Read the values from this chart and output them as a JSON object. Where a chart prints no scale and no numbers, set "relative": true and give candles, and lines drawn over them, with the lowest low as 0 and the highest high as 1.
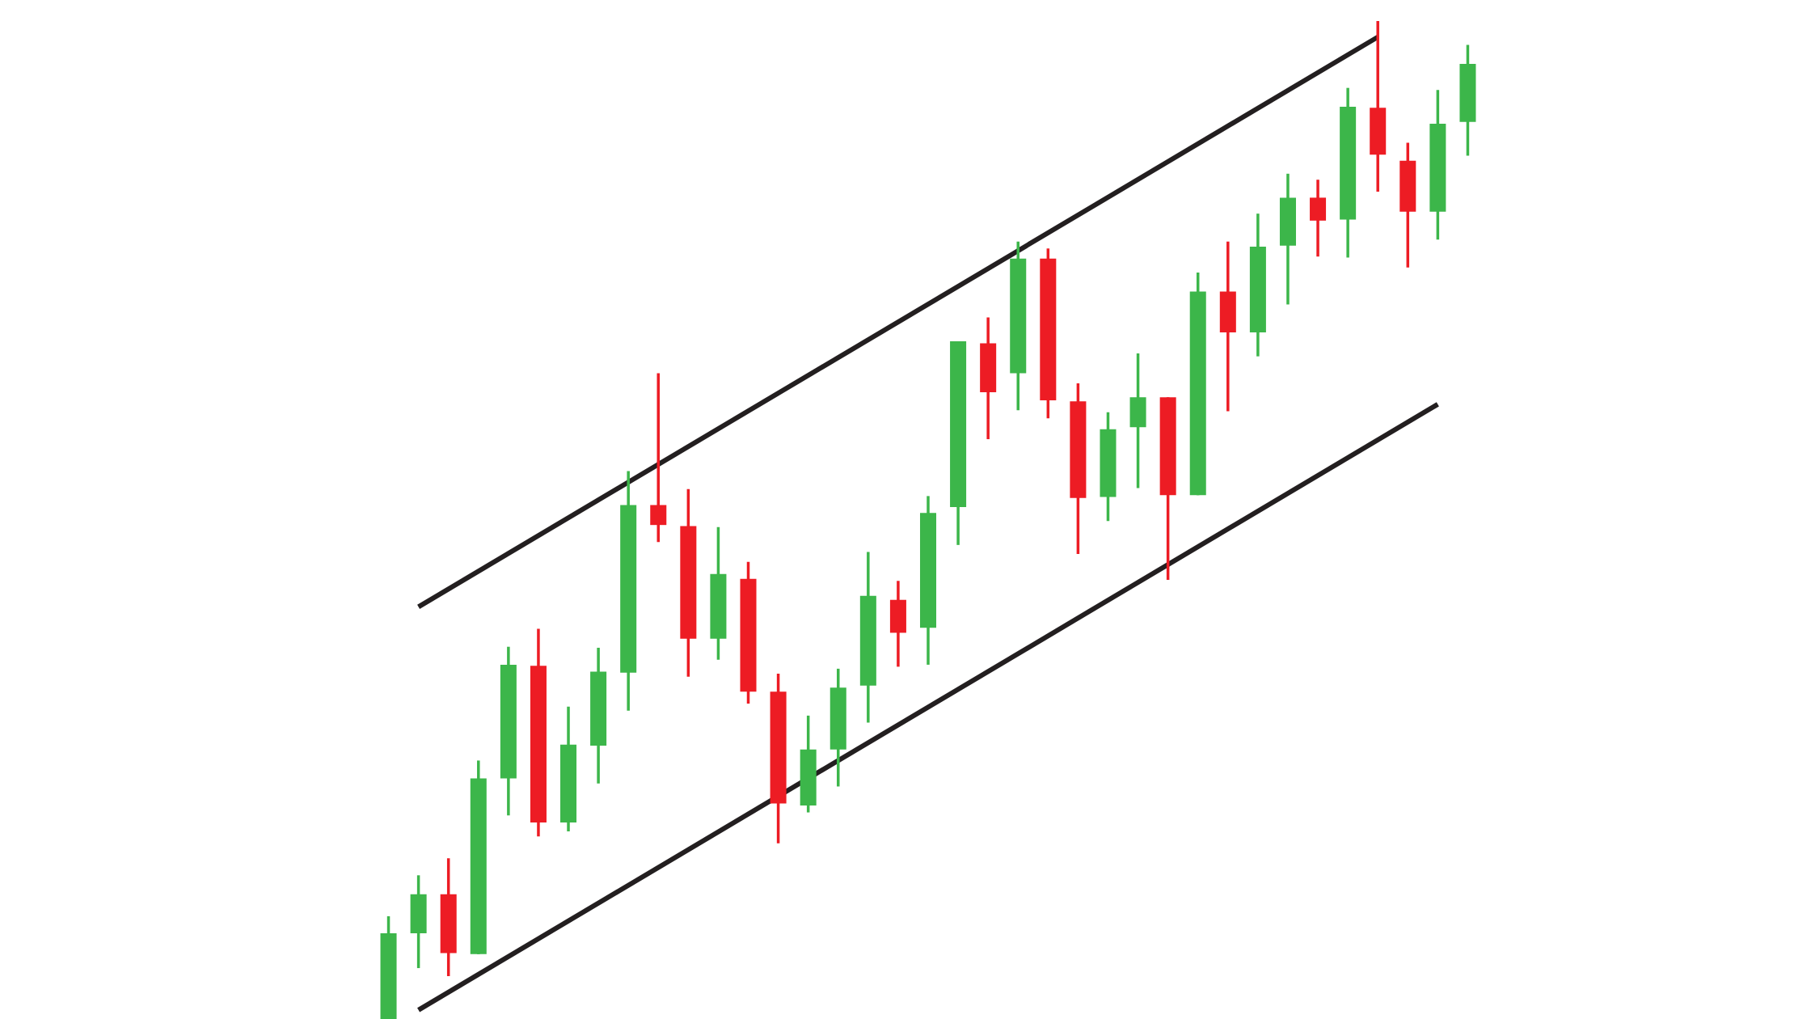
{
  "chart_data": {
    "type": "candlestick",
    "relative": true,
    "categories": [
      null,
      null,
      null,
      null,
      null,
      null,
      null,
      null,
      null,
      null,
      null,
      null,
      null,
      null,
      null,
      null,
      null,
      null,
      null,
      null,
      null,
      null,
      null,
      null,
      null,
      null,
      null,
      null,
      null,
      null,
      null,
      null,
      null,
      null,
      null,
      null,
      null
    ],
    "ohlc": [
      [
        0,
        0.103,
        0,
        0.086
      ],
      [
        0.086,
        0.144,
        0.051,
        0.125
      ],
      [
        0.125,
        0.161,
        0.043,
        0.066
      ],
      [
        0.065,
        0.259,
        0.065,
        0.241
      ],
      [
        0.241,
        0.373,
        0.204,
        0.355
      ],
      [
        0.354,
        0.391,
        0.183,
        0.197
      ],
      [
        0.197,
        0.313,
        0.188,
        0.275
      ],
      [
        0.274,
        0.372,
        0.236,
        0.348
      ],
      [
        0.347,
        0.549,
        0.309,
        0.515
      ],
      [
        0.515,
        0.647,
        0.478,
        0.495
      ],
      [
        0.494,
        0.531,
        0.343,
        0.381
      ],
      [
        0.381,
        0.493,
        0.36,
        0.446
      ],
      [
        0.441,
        0.458,
        0.316,
        0.328
      ],
      [
        0.328,
        0.346,
        0.176,
        0.216
      ],
      [
        0.214,
        0.304,
        0.207,
        0.27
      ],
      [
        0.27,
        0.351,
        0.233,
        0.332
      ],
      [
        0.334,
        0.468,
        0.297,
        0.424
      ],
      [
        0.42,
        0.439,
        0.353,
        0.387
      ],
      [
        0.392,
        0.524,
        0.355,
        0.507
      ],
      [
        0.513,
        0.679,
        0.475,
        0.679
      ],
      [
        0.677,
        0.703,
        0.581,
        0.628
      ],
      [
        0.647,
        0.779,
        0.61,
        0.762
      ],
      [
        0.762,
        0.772,
        0.602,
        0.62
      ],
      [
        0.619,
        0.637,
        0.466,
        0.522
      ],
      [
        0.523,
        0.608,
        0.499,
        0.591
      ],
      [
        0.593,
        0.667,
        0.532,
        0.623
      ],
      [
        0.623,
        0.623,
        0.44,
        0.525
      ],
      [
        0.525,
        0.748,
        0.525,
        0.729
      ],
      [
        0.729,
        0.779,
        0.609,
        0.688
      ],
      [
        0.688,
        0.807,
        0.664,
        0.774
      ],
      [
        0.775,
        0.847,
        0.716,
        0.823
      ],
      [
        0.823,
        0.841,
        0.764,
        0.8
      ],
      [
        0.801,
        0.933,
        0.763,
        0.914
      ],
      [
        0.913,
        1,
        0.829,
        0.866
      ],
      [
        0.86,
        0.878,
        0.753,
        0.809
      ],
      [
        0.809,
        0.931,
        0.781,
        0.897
      ],
      [
        0.899,
        0.976,
        0.865,
        0.957
      ]
    ],
    "colors": [
      "#3cb64a",
      "#3cb64a",
      "#ed1c24",
      "#3cb64a",
      "#3cb64a",
      "#ed1c24",
      "#3cb64a",
      "#3cb64a",
      "#3cb64a",
      "#ed1c24",
      "#ed1c24",
      "#3cb64a",
      "#ed1c24",
      "#ed1c24",
      "#3cb64a",
      "#3cb64a",
      "#3cb64a",
      "#ed1c24",
      "#3cb64a",
      "#3cb64a",
      "#ed1c24",
      "#3cb64a",
      "#ed1c24",
      "#ed1c24",
      "#3cb64a",
      "#3cb64a",
      "#ed1c24",
      "#3cb64a",
      "#ed1c24",
      "#3cb64a",
      "#3cb64a",
      "#ed1c24",
      "#3cb64a",
      "#ed1c24",
      "#ed1c24",
      "#3cb64a",
      "#3cb64a"
    ],
    "series": [
      {
        "type": "line",
        "values": [
          null,
          0.413,
          null,
          null,
          null,
          null,
          null,
          null,
          null,
          null,
          null,
          null,
          null,
          null,
          null,
          null,
          null,
          null,
          null,
          null,
          null,
          null,
          null,
          null,
          null,
          null,
          null,
          null,
          null,
          null,
          null,
          null,
          null,
          0.984,
          null,
          null,
          null
        ],
        "color": "#231f20"
      },
      {
        "type": "line",
        "values": [
          null,
          0.009,
          null,
          null,
          null,
          null,
          null,
          null,
          null,
          null,
          null,
          null,
          null,
          null,
          null,
          null,
          null,
          null,
          null,
          null,
          null,
          null,
          null,
          null,
          null,
          null,
          null,
          null,
          null,
          null,
          null,
          null,
          null,
          null,
          null,
          0.616,
          null
        ],
        "color": "#231f20"
      }
    ]
  }
}
